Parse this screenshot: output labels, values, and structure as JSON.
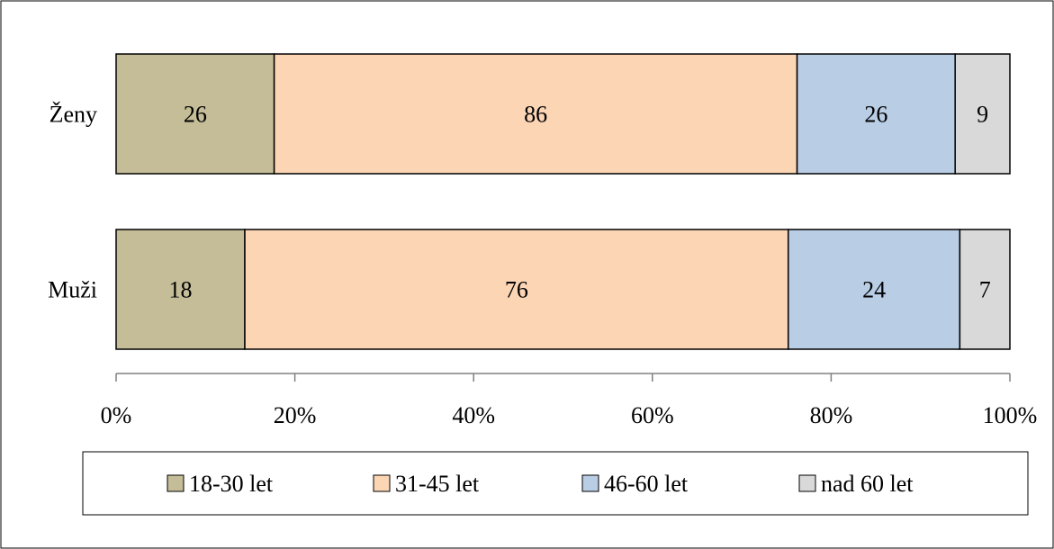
{
  "chart_data": {
    "type": "bar",
    "orientation": "horizontal",
    "stacking": "percent",
    "title": "",
    "xlabel": "",
    "ylabel": "",
    "categories": [
      "Ženy",
      "Muži"
    ],
    "series": [
      {
        "name": "18-30 let",
        "values": [
          26,
          18
        ],
        "color": "#C4BD97"
      },
      {
        "name": "31-45 let",
        "values": [
          86,
          76
        ],
        "color": "#FCD5B5"
      },
      {
        "name": "46-60 let",
        "values": [
          26,
          24
        ],
        "color": "#B9CDE5"
      },
      {
        "name": "nad 60 let",
        "values": [
          9,
          7
        ],
        "color": "#D9D9D9"
      }
    ],
    "xlim": [
      0,
      100
    ],
    "xticks": [
      "0%",
      "20%",
      "40%",
      "60%",
      "80%",
      "100%"
    ],
    "grid": false,
    "legend_position": "bottom"
  }
}
